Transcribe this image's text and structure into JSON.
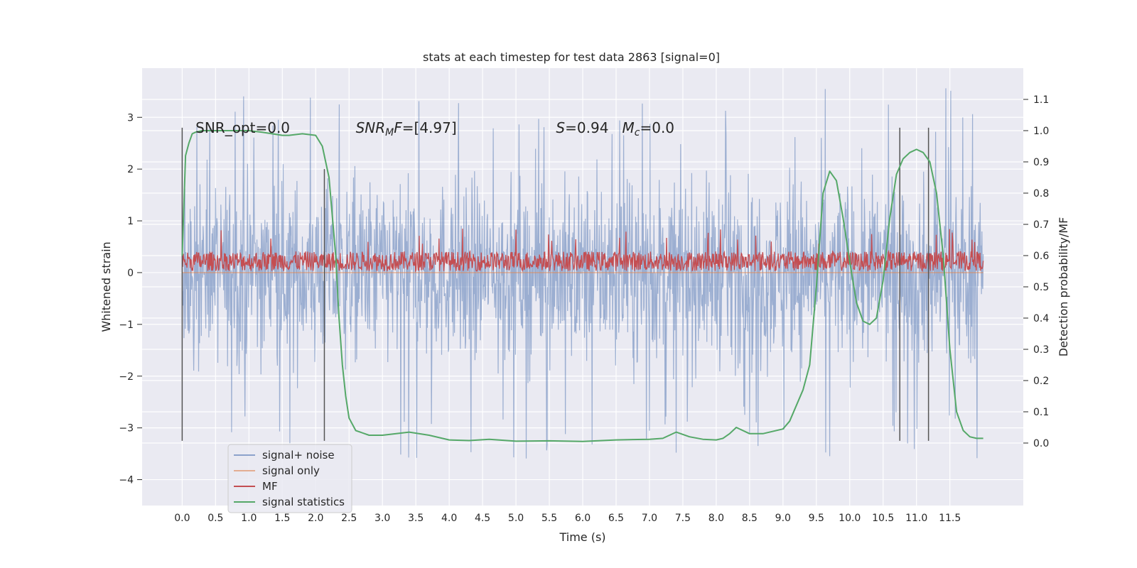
{
  "chart_data": {
    "type": "line",
    "title": "stats at each timestep for test data 2863 [signal=0]",
    "xlabel": "Time (s)",
    "ylabel": "Whitened strain",
    "y2label": "Detection probability/MF",
    "xlim": [
      -0.6,
      12.6
    ],
    "ylim": [
      -4.5,
      3.95
    ],
    "y2lim": [
      -0.2,
      1.2
    ],
    "xticks": [
      0.0,
      0.5,
      1.0,
      1.5,
      2.0,
      2.5,
      3.0,
      3.5,
      4.0,
      4.5,
      5.0,
      5.5,
      6.0,
      6.5,
      7.0,
      7.5,
      8.0,
      8.5,
      9.0,
      9.5,
      10.0,
      10.5,
      11.0,
      11.5
    ],
    "xtick_labels": [
      "0.0",
      "0.5",
      "1.0",
      "1.5",
      "2.0",
      "2.5",
      "3.0",
      "3.5",
      "4.0",
      "4.5",
      "5.0",
      "5.5",
      "6.0",
      "6.5",
      "7.0",
      "7.5",
      "8.0",
      "8.5",
      "9.0",
      "9.5",
      "10.0",
      "10.5",
      "11.0",
      "11.5"
    ],
    "yticks": [
      3,
      2,
      1,
      0,
      -1,
      -2,
      -3,
      -4
    ],
    "ytick_labels": [
      "3",
      "2",
      "1",
      "0",
      "−1",
      "−2",
      "−3",
      "−4"
    ],
    "y2ticks": [
      1.1,
      1.0,
      0.9,
      0.8,
      0.7,
      0.6,
      0.5,
      0.4,
      0.3,
      0.2,
      0.1,
      0.0
    ],
    "y2tick_labels": [
      "1.1",
      "1.0",
      "0.9",
      "0.8",
      "0.7",
      "0.6",
      "0.5",
      "0.4",
      "0.3",
      "0.2",
      "0.1",
      "0.0"
    ],
    "grid": true,
    "legend_position": "lower-left",
    "series": [
      {
        "name": "signal+ noise",
        "color": "#4c72b0",
        "kind": "noise",
        "t_range": [
          0,
          12
        ],
        "amplitude": "approx ±2.5, peaks to 3.6 / -4.1"
      },
      {
        "name": "signal only",
        "color": "#dd8452",
        "kind": "flat",
        "values": [
          0
        ]
      },
      {
        "name": "MF",
        "color": "#c44e52",
        "kind": "band",
        "t_range": [
          0,
          12
        ],
        "range": [
          0.0,
          0.9
        ]
      },
      {
        "name": "signal statistics",
        "color": "#55a868",
        "kind": "line",
        "t": [
          0.0,
          0.05,
          0.1,
          0.15,
          0.2,
          0.3,
          0.5,
          1.0,
          1.2,
          1.5,
          1.6,
          1.8,
          2.0,
          2.1,
          2.2,
          2.3,
          2.35,
          2.4,
          2.45,
          2.5,
          2.6,
          2.8,
          3.0,
          3.4,
          3.7,
          4.0,
          4.3,
          4.6,
          5.0,
          5.5,
          6.0,
          6.5,
          7.0,
          7.2,
          7.4,
          7.6,
          7.8,
          8.0,
          8.1,
          8.2,
          8.3,
          8.5,
          8.7,
          9.0,
          9.1,
          9.2,
          9.3,
          9.4,
          9.5,
          9.6,
          9.7,
          9.8,
          9.9,
          10.0,
          10.1,
          10.2,
          10.3,
          10.4,
          10.5,
          10.6,
          10.7,
          10.8,
          10.9,
          11.0,
          11.1,
          11.2,
          11.3,
          11.4,
          11.5,
          11.6,
          11.7,
          11.8,
          11.9,
          12.0
        ],
        "values": [
          0.6,
          0.92,
          0.96,
          0.99,
          0.995,
          1.0,
          1.0,
          1.0,
          0.995,
          0.985,
          0.985,
          0.99,
          0.985,
          0.95,
          0.85,
          0.6,
          0.4,
          0.25,
          0.15,
          0.08,
          0.04,
          0.025,
          0.025,
          0.035,
          0.025,
          0.01,
          0.008,
          0.012,
          0.006,
          0.007,
          0.005,
          0.01,
          0.012,
          0.015,
          0.035,
          0.02,
          0.012,
          0.01,
          0.015,
          0.03,
          0.05,
          0.03,
          0.03,
          0.045,
          0.07,
          0.12,
          0.17,
          0.25,
          0.5,
          0.8,
          0.87,
          0.84,
          0.72,
          0.58,
          0.45,
          0.39,
          0.38,
          0.4,
          0.52,
          0.72,
          0.86,
          0.91,
          0.93,
          0.94,
          0.93,
          0.9,
          0.8,
          0.6,
          0.3,
          0.1,
          0.04,
          0.02,
          0.015,
          0.015
        ]
      }
    ],
    "vlines": [
      {
        "x": 0.0,
        "y_range": [
          -3.25,
          2.8
        ]
      },
      {
        "x": 2.13,
        "y_range": [
          -3.25,
          2.0
        ]
      },
      {
        "x": 10.75,
        "y_range": [
          -3.25,
          2.8
        ]
      },
      {
        "x": 11.18,
        "y_range": [
          -3.25,
          2.8
        ]
      }
    ],
    "annotations": [
      {
        "text": "SNR_opt=0.0",
        "x": 0.2,
        "y": 2.8
      },
      {
        "text": "SNR_MF=[4.97]",
        "x": 2.6,
        "y": 2.8
      },
      {
        "text": "S=0.94   M_c=0.0",
        "x": 5.6,
        "y": 2.8
      }
    ]
  }
}
